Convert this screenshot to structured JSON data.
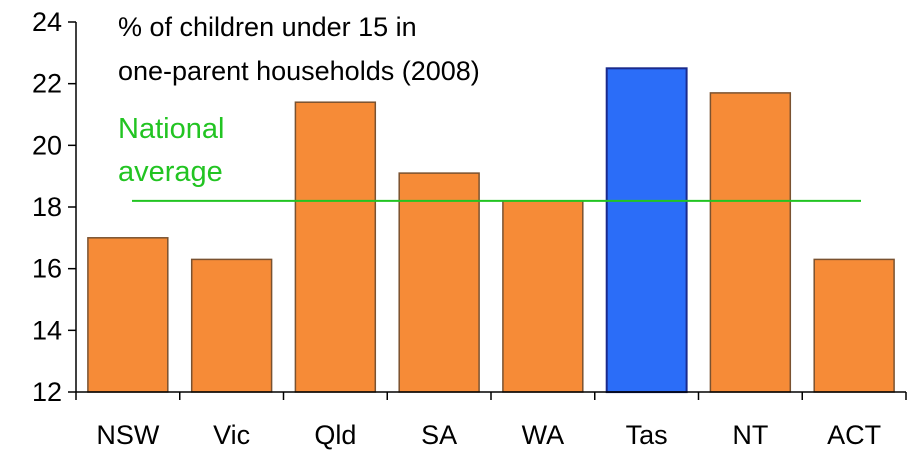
{
  "chart_data": {
    "type": "bar",
    "title_lines": [
      "% of children under 15 in",
      "one-parent households (2008)"
    ],
    "xlabel": "",
    "ylabel": "",
    "categories": [
      "NSW",
      "Vic",
      "Qld",
      "SA",
      "WA",
      "Tas",
      "NT",
      "ACT"
    ],
    "values": [
      17.0,
      16.3,
      21.4,
      19.1,
      18.2,
      22.5,
      21.7,
      16.3
    ],
    "highlight_category": "Tas",
    "ylim": [
      12,
      24
    ],
    "yticks": [
      12,
      14,
      16,
      18,
      20,
      22,
      24
    ],
    "grid": false,
    "legend": "none",
    "reference_line": {
      "label_lines": [
        "National",
        "average"
      ],
      "value": 18.2
    }
  },
  "colors": {
    "bar_fill": "#F68B37",
    "bar_stroke": "#7A5230",
    "highlight_fill": "#2B6DF8",
    "highlight_stroke": "#1A2A8C",
    "reference_line": "#22C422",
    "axis": "#000000"
  }
}
